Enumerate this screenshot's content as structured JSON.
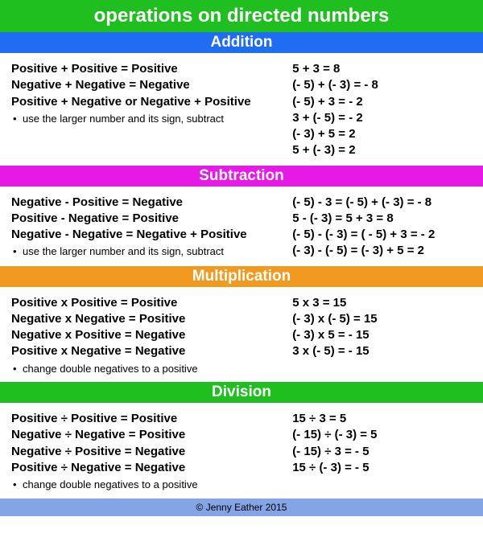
{
  "title": "operations on directed numbers",
  "title_bg": "#1fbf1f",
  "footer_text": "© Jenny Eather 2015",
  "footer_bg": "#83a5e6",
  "body_bg": "#ffffff",
  "text_color": "#000000",
  "header_text_color": "#ffffff",
  "title_fontsize": 24,
  "header_fontsize": 19,
  "body_fontsize": 15,
  "note_fontsize": 13,
  "sections": [
    {
      "header": "Addition",
      "header_bg": "#1e6df2",
      "rules": [
        "Positive + Positive = Positive",
        "Negative + Negative = Negative",
        "Positive + Negative or Negative + Positive"
      ],
      "note": "use the larger number and its sign, subtract",
      "examples": [
        "5 + 3 = 8",
        "(- 5) + (- 3) = - 8",
        "(- 5) + 3 = - 2",
        "3 + (- 5) = - 2",
        "(- 3) + 5 = 2",
        "5 + (- 3) = 2"
      ]
    },
    {
      "header": "Subtraction",
      "header_bg": "#e619e6",
      "rules": [
        "Negative - Positive = Negative",
        "Positive - Negative = Positive",
        "Negative - Negative = Negative + Positive"
      ],
      "note": "use the larger number and its sign, subtract",
      "examples": [
        "(- 5) - 3 = (- 5) + (- 3) = - 8",
        "5 - (- 3) = 5 + 3 = 8",
        "(- 5) - (- 3) = ( - 5) + 3 = - 2",
        "(- 3) - (- 5) = (- 3) + 5 = 2"
      ]
    },
    {
      "header": "Multiplication",
      "header_bg": "#f29a1f",
      "rules": [
        "Positive x Positive = Positive",
        "Negative x Negative = Positive",
        "Negative x Positive = Negative",
        "Positive x Negative = Negative"
      ],
      "note": "change double negatives to a positive",
      "examples": [
        "5 x 3 = 15",
        "(- 3) x (- 5) = 15",
        "(- 3) x 5 = - 15",
        "3 x (- 5) = - 15"
      ]
    },
    {
      "header": "Division",
      "header_bg": "#1fbf1f",
      "rules": [
        "Positive ÷ Positive = Positive",
        "Negative ÷ Negative = Positive",
        "Negative ÷ Positive = Negative",
        "Positive ÷ Negative = Negative"
      ],
      "note": "change double negatives to a positive",
      "examples": [
        "15 ÷ 3 = 5",
        "(- 15) ÷ (- 3) = 5",
        "(- 15) ÷ 3 = - 5",
        "15 ÷ (- 3) = - 5"
      ]
    }
  ]
}
